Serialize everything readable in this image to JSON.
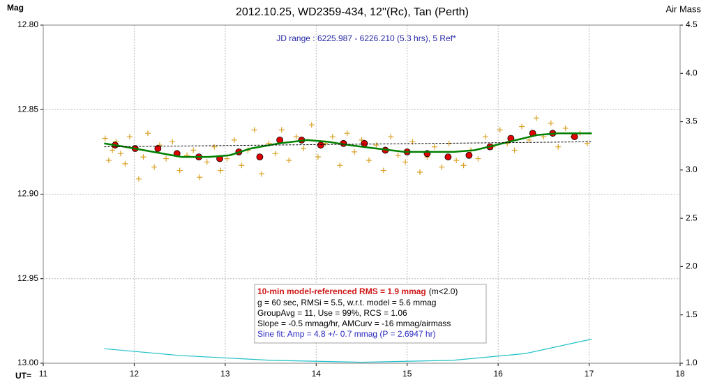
{
  "chart_data": {
    "type": "line",
    "title": "2012.10.25, WD2359-434, 12''(Rc), Tan (Perth)",
    "y_label": "Mag",
    "y2_label": "Air Mass",
    "x_label": "UT=",
    "annotation": "JD range : 6225.987 - 6226.210 (5.3 hrs), 5 Ref*",
    "stats": {
      "rms": "10-min model-referenced RMS = 1.9 mmag",
      "rms_note": "(m<2.0)",
      "lines": [
        "g = 60 sec, RMSi = 5.5, w.r.t. model = 5.6 mmag",
        "GroupAvg  = 11, Use = 99%, RCS = 1.06",
        "Slope = -0.5 mmag/hr, AMCurv = -16 mmag/airmass"
      ],
      "sine": "Sine fit: Amp = 4.8 +/- 0.7 mmag (P = 2.6947 hr)"
    },
    "xlim": [
      11,
      18
    ],
    "xticks": [
      11,
      12,
      13,
      14,
      15,
      16,
      17,
      18
    ],
    "ylim": [
      13.0,
      12.8
    ],
    "yticks": [
      {
        "value": 12.8,
        "label": "12.80"
      },
      12.85,
      {
        "value": 12.9,
        "label": "12.90"
      },
      12.95,
      {
        "value": 13.0,
        "label": "13.00"
      }
    ],
    "y2lim": [
      1.0,
      4.5
    ],
    "y2ticks": [
      {
        "value": 1.0,
        "label": "1.0"
      },
      1.5,
      {
        "value": 2.0,
        "label": "2.0"
      },
      2.5,
      {
        "value": 3.0,
        "label": "3.0"
      },
      3.5,
      {
        "value": 4.0,
        "label": "4.0"
      },
      4.5
    ],
    "grid": true,
    "series": [
      {
        "type": "scatter",
        "marker": "cross",
        "color": "#d9a020",
        "x": [
          11.68,
          11.72,
          11.76,
          11.8,
          11.85,
          11.9,
          11.95,
          12.0,
          12.05,
          12.1,
          12.15,
          12.22,
          12.28,
          12.35,
          12.42,
          12.5,
          12.58,
          12.65,
          12.72,
          12.8,
          12.88,
          12.95,
          13.02,
          13.1,
          13.18,
          13.25,
          13.32,
          13.4,
          13.48,
          13.55,
          13.62,
          13.7,
          13.78,
          13.86,
          13.95,
          14.02,
          14.1,
          14.18,
          14.26,
          14.34,
          14.42,
          14.5,
          14.58,
          14.66,
          14.74,
          14.82,
          14.9,
          14.98,
          15.06,
          15.14,
          15.22,
          15.3,
          15.38,
          15.46,
          15.54,
          15.62,
          15.7,
          15.78,
          15.86,
          15.94,
          16.02,
          16.1,
          16.18,
          16.26,
          16.34,
          16.42,
          16.5,
          16.58,
          16.66,
          16.74,
          16.82,
          16.9,
          16.98
        ],
        "values": [
          12.867,
          12.88,
          12.874,
          12.869,
          12.876,
          12.882,
          12.866,
          12.873,
          12.891,
          12.878,
          12.864,
          12.884,
          12.871,
          12.879,
          12.869,
          12.886,
          12.877,
          12.874,
          12.89,
          12.881,
          12.872,
          12.886,
          12.879,
          12.868,
          12.883,
          12.874,
          12.862,
          12.888,
          12.87,
          12.876,
          12.862,
          12.88,
          12.866,
          12.873,
          12.859,
          12.878,
          12.87,
          12.866,
          12.883,
          12.864,
          12.875,
          12.868,
          12.88,
          12.871,
          12.886,
          12.866,
          12.877,
          12.881,
          12.869,
          12.887,
          12.878,
          12.872,
          12.884,
          12.87,
          12.88,
          12.883,
          12.874,
          12.879,
          12.866,
          12.872,
          12.862,
          12.87,
          12.874,
          12.86,
          12.868,
          12.855,
          12.866,
          12.858,
          12.872,
          12.861,
          12.866,
          12.864,
          12.87
        ]
      },
      {
        "type": "scatter",
        "marker": "dot",
        "color": "#e00000",
        "x": [
          11.79,
          12.01,
          12.26,
          12.47,
          12.71,
          12.94,
          13.15,
          13.38,
          13.6,
          13.84,
          14.05,
          14.3,
          14.53,
          14.76,
          15.0,
          15.22,
          15.45,
          15.68,
          15.91,
          16.14,
          16.38,
          16.6,
          16.84
        ],
        "values": [
          12.871,
          12.873,
          12.873,
          12.876,
          12.878,
          12.879,
          12.875,
          12.878,
          12.868,
          12.868,
          12.871,
          12.87,
          12.87,
          12.874,
          12.875,
          12.876,
          12.878,
          12.877,
          12.872,
          12.867,
          12.864,
          12.864,
          12.866
        ]
      },
      {
        "type": "line",
        "color": "#008000",
        "width": 2.5,
        "x": [
          11.67,
          11.9,
          12.21,
          12.52,
          12.82,
          13.05,
          13.28,
          13.59,
          13.9,
          14.13,
          14.36,
          14.66,
          14.97,
          15.28,
          15.51,
          15.74,
          15.97,
          16.2,
          16.43,
          16.66,
          16.89,
          17.03
        ],
        "values": [
          12.87,
          12.872,
          12.875,
          12.878,
          12.878,
          12.877,
          12.873,
          12.87,
          12.868,
          12.869,
          12.871,
          12.873,
          12.875,
          12.875,
          12.875,
          12.874,
          12.871,
          12.868,
          12.865,
          12.864,
          12.864,
          12.864
        ]
      },
      {
        "type": "line",
        "color": "#000000",
        "width": 1,
        "dash": true,
        "x": [
          11.67,
          17.03
        ],
        "values": [
          12.872,
          12.869
        ]
      },
      {
        "type": "line",
        "color": "#20c0c8",
        "width": 1.2,
        "axis": "y2",
        "x": [
          11.67,
          12.5,
          13.5,
          14.5,
          15.5,
          16.3,
          17.03
        ],
        "values": [
          1.15,
          1.08,
          1.03,
          1.01,
          1.03,
          1.1,
          1.25
        ]
      }
    ]
  }
}
